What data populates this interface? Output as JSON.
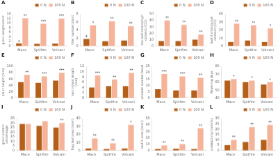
{
  "chart_data": [
    {
      "type": "bar",
      "title": "A",
      "y_label": "grain weight/plant",
      "categories": [
        "Mace",
        "Spitfire",
        "Volcani"
      ],
      "series": [
        {
          "name": "0 N",
          "color": "#b5601a",
          "values": [
            1.2,
            1.0,
            1.1
          ]
        },
        {
          "name": "100 N",
          "color": "#f5b49a",
          "values": [
            12.2,
            9.8,
            12.0
          ]
        }
      ],
      "annotations": [
        {
          "series": "100 N",
          "category": "Mace",
          "text": "**"
        },
        {
          "series": "100 N",
          "category": "Spitfire",
          "text": "***"
        },
        {
          "series": "100 N",
          "category": "Volcani",
          "text": "***"
        },
        {
          "series": "0 N",
          "category": "Mace",
          "text": "+"
        }
      ],
      "ylim": [
        0,
        14
      ],
      "yticks": [
        0,
        2,
        4,
        6,
        8,
        10,
        12,
        14
      ],
      "grid": false,
      "legend": "upper left"
    },
    {
      "type": "bar",
      "title": "B",
      "y_label": "tiller number/plant",
      "categories": [
        "Mace",
        "Spitfire",
        "Volcani"
      ],
      "series": [
        {
          "name": "0 N",
          "color": "#b5601a",
          "values": [
            1.8,
            1.2,
            1.4
          ]
        },
        {
          "name": "100 N",
          "color": "#f5b49a",
          "values": [
            5.2,
            6.2,
            5.0
          ]
        }
      ],
      "annotations": [
        {
          "series": "100 N",
          "category": "Mace",
          "text": "*"
        },
        {
          "series": "100 N",
          "category": "Spitfire",
          "text": "**"
        },
        {
          "series": "100 N",
          "category": "Volcani",
          "text": "**"
        },
        {
          "series": "0 N",
          "category": "Mace",
          "text": "+"
        }
      ],
      "ylim": [
        0,
        8
      ],
      "yticks": [
        0,
        2,
        4,
        6,
        8
      ],
      "grid": false,
      "legend": "upper left"
    },
    {
      "type": "bar",
      "title": "C",
      "y_label": "top leaf chlorophyll content (CCI)",
      "categories": [
        "Mace",
        "Spitfire",
        "Volcani"
      ],
      "series": [
        {
          "name": "0 N",
          "color": "#b5601a",
          "values": [
            8,
            8,
            10
          ]
        },
        {
          "name": "100 N",
          "color": "#f5b49a",
          "values": [
            40,
            33,
            18
          ]
        }
      ],
      "annotations": [
        {
          "series": "100 N",
          "category": "Mace",
          "text": "**"
        },
        {
          "series": "100 N",
          "category": "Spitfire",
          "text": "**"
        },
        {
          "series": "100 N",
          "category": "Volcani",
          "text": "**"
        }
      ],
      "ylim": [
        0,
        50
      ],
      "yticks": [
        0,
        10,
        20,
        30,
        40,
        50
      ],
      "grid": false,
      "legend": "upper left"
    },
    {
      "type": "bar",
      "title": "D",
      "y_label": "leaf 4 chlorophyll content (CCI)",
      "categories": [
        "Mace",
        "Spitfire",
        "Volcani"
      ],
      "series": [
        {
          "name": "0 N",
          "color": "#b5601a",
          "values": [
            5,
            7,
            5
          ]
        },
        {
          "name": "100 N",
          "color": "#f5b49a",
          "values": [
            28,
            26,
            22
          ]
        }
      ],
      "annotations": [
        {
          "series": "100 N",
          "category": "Mace",
          "text": "**"
        },
        {
          "series": "100 N",
          "category": "Spitfire",
          "text": "**"
        },
        {
          "series": "100 N",
          "category": "Volcani",
          "text": "*"
        }
      ],
      "ylim": [
        0,
        40
      ],
      "yticks": [
        0,
        10,
        20,
        30,
        40
      ],
      "grid": false,
      "legend": "upper left"
    },
    {
      "type": "bar",
      "title": "E",
      "y_label": "plant height (mm)",
      "categories": [
        "Mace",
        "Spitfire",
        "Volcani"
      ],
      "series": [
        {
          "name": "0 N",
          "color": "#b5601a",
          "values": [
            50,
            48,
            55
          ]
        },
        {
          "name": "100 N",
          "color": "#f5b49a",
          "values": [
            73,
            68,
            80
          ]
        }
      ],
      "annotations": [
        {
          "series": "100 N",
          "category": "Mace",
          "text": "**"
        },
        {
          "series": "100 N",
          "category": "Spitfire",
          "text": "***"
        },
        {
          "series": "100 N",
          "category": "Volcani",
          "text": "***"
        }
      ],
      "ylim": [
        0,
        100
      ],
      "yticks": [
        0,
        20,
        40,
        60,
        80,
        100
      ],
      "grid": false,
      "legend": "upper left"
    },
    {
      "type": "bar",
      "title": "F",
      "y_label": "main shoot length (mm)",
      "categories": [
        "Mace",
        "Spitfire",
        "Volcani"
      ],
      "series": [
        {
          "name": "0 N",
          "color": "#b5601a",
          "values": [
            4.0,
            4.5,
            4.5
          ]
        },
        {
          "name": "100 N",
          "color": "#f5b49a",
          "values": [
            8.5,
            7.0,
            9.5
          ]
        }
      ],
      "annotations": [
        {
          "series": "100 N",
          "category": "Mace",
          "text": "***"
        },
        {
          "series": "100 N",
          "category": "Spitfire",
          "text": "**"
        },
        {
          "series": "100 N",
          "category": "Volcani",
          "text": "**"
        }
      ],
      "ylim": [
        0,
        12
      ],
      "yticks": [
        0,
        2,
        4,
        6,
        8,
        10,
        12
      ],
      "grid": false,
      "legend": "upper left"
    },
    {
      "type": "bar",
      "title": "G",
      "y_label": "spikelet number/head",
      "categories": [
        "Mace",
        "Spitfire",
        "Volcani"
      ],
      "series": [
        {
          "name": "0 N",
          "color": "#b5601a",
          "values": [
            7,
            6,
            6
          ]
        },
        {
          "name": "100 N",
          "color": "#f5b49a",
          "values": [
            19,
            17,
            16
          ]
        }
      ],
      "annotations": [
        {
          "series": "100 N",
          "category": "Mace",
          "text": "***"
        },
        {
          "series": "100 N",
          "category": "Spitfire",
          "text": "***"
        },
        {
          "series": "100 N",
          "category": "Volcani",
          "text": "**"
        }
      ],
      "ylim": [
        0,
        25
      ],
      "yticks": [
        0,
        5,
        10,
        15,
        20,
        25
      ],
      "grid": false,
      "legend": "upper left"
    },
    {
      "type": "bar",
      "title": "H",
      "y_label": "flowering days",
      "categories": [
        "Mace",
        "Spitfire",
        "Volcani"
      ],
      "series": [
        {
          "name": "0 N",
          "color": "#b5601a",
          "values": [
            62,
            60,
            57
          ]
        },
        {
          "name": "100 N",
          "color": "#f5b49a",
          "values": [
            64,
            62,
            60
          ]
        }
      ],
      "annotations": [
        {
          "series": "100 N",
          "category": "Mace",
          "text": "*"
        },
        {
          "series": "100 N",
          "category": "Spitfire",
          "text": "*"
        },
        {
          "series": "100 N",
          "category": "Volcani",
          "text": "*"
        }
      ],
      "ylim": [
        40,
        80
      ],
      "yticks": [
        40,
        50,
        60,
        70,
        80
      ],
      "grid": false,
      "legend": "upper left"
    },
    {
      "type": "bar",
      "title": "I",
      "y_label": "grain protein percentage",
      "categories": [
        "Mace",
        "Spitfire",
        "Volcani"
      ],
      "series": [
        {
          "name": "0 N",
          "color": "#b5601a",
          "values": [
            29,
            27,
            25
          ]
        },
        {
          "name": "100 N",
          "color": "#f5b49a",
          "values": [
            29,
            32,
            30
          ]
        }
      ],
      "annotations": [
        {
          "series": "100 N",
          "category": "Volcani",
          "text": "**"
        }
      ],
      "ylim": [
        0,
        35
      ],
      "yticks": [
        0,
        5,
        10,
        15,
        20,
        25,
        30,
        35
      ],
      "grid": false,
      "legend": "upper left"
    },
    {
      "type": "bar",
      "title": "J",
      "y_label": "flag leaf area (mm²)",
      "categories": [
        "Mace",
        "Spitfire",
        "Volcani"
      ],
      "series": [
        {
          "name": "0 N",
          "color": "#b5601a",
          "values": [
            2.5,
            2.0,
            2.5
          ]
        },
        {
          "name": "100 N",
          "color": "#f5b49a",
          "values": [
            15,
            9,
            32
          ]
        }
      ],
      "annotations": [
        {
          "series": "100 N",
          "category": "Mace",
          "text": "**"
        },
        {
          "series": "100 N",
          "category": "Spitfire",
          "text": "**"
        },
        {
          "series": "100 N",
          "category": "Volcani",
          "text": "*"
        }
      ],
      "ylim": [
        0,
        40
      ],
      "yticks": [
        0,
        10,
        20,
        30,
        40
      ],
      "grid": false,
      "legend": "upper left"
    },
    {
      "type": "bar",
      "title": "K",
      "y_label": "leaf 2 area (mm²)",
      "categories": [
        "Mace",
        "Spitfire",
        "Volcani"
      ],
      "series": [
        {
          "name": "0 N",
          "color": "#b5601a",
          "values": [
            2.5,
            3.0,
            2.5
          ]
        },
        {
          "name": "100 N",
          "color": "#f5b49a",
          "values": [
            8,
            10,
            35
          ]
        }
      ],
      "annotations": [
        {
          "series": "100 N",
          "category": "Mace",
          "text": "**"
        },
        {
          "series": "100 N",
          "category": "Spitfire",
          "text": "**"
        },
        {
          "series": "100 N",
          "category": "Volcani",
          "text": "**"
        }
      ],
      "ylim": [
        0,
        50
      ],
      "yticks": [
        0,
        10,
        20,
        30,
        40,
        50
      ],
      "grid": false,
      "legend": "upper left"
    },
    {
      "type": "bar",
      "title": "L",
      "y_label": "productivity (mm²/L)",
      "categories": [
        "Mace",
        "Spitfire",
        "Volcani"
      ],
      "series": [
        {
          "name": "0 N",
          "color": "#b5601a",
          "values": [
            5,
            8,
            10
          ]
        },
        {
          "name": "100 N",
          "color": "#f5b49a",
          "values": [
            10,
            22,
            24
          ]
        }
      ],
      "annotations": [
        {
          "series": "100 N",
          "category": "Mace",
          "text": "**"
        },
        {
          "series": "100 N",
          "category": "Spitfire",
          "text": "**"
        },
        {
          "series": "100 N",
          "category": "Volcani",
          "text": "**"
        }
      ],
      "ylim": [
        0,
        30
      ],
      "yticks": [
        0,
        5,
        10,
        15,
        20,
        25,
        30
      ],
      "grid": false,
      "legend": "upper left"
    }
  ]
}
